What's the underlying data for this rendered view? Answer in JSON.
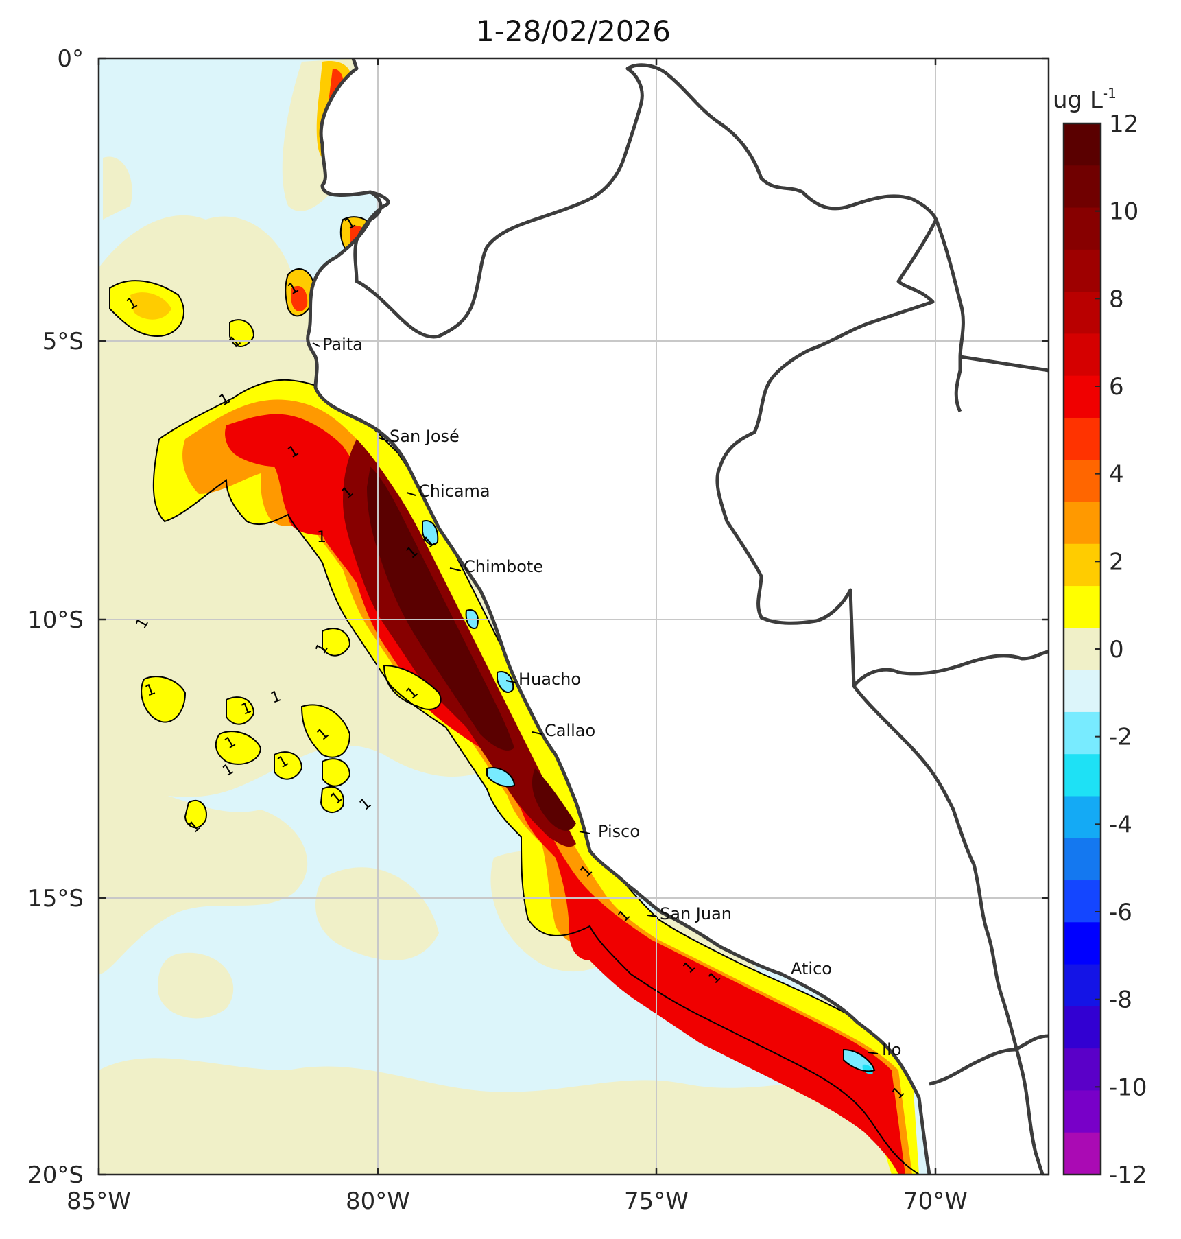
{
  "title": "1-28/02/2026",
  "colorbar": {
    "unit_main": "ug L",
    "unit_exp": "-1",
    "tick_labels": [
      "12",
      "10",
      "8",
      "6",
      "4",
      "2",
      "0",
      "-2",
      "-4",
      "-6",
      "-8",
      "-10",
      "-12"
    ],
    "colors": [
      "#5a0000",
      "#700000",
      "#870000",
      "#9e0000",
      "#b90000",
      "#d50000",
      "#f00000",
      "#ff3300",
      "#ff6600",
      "#ff9900",
      "#ffcc00",
      "#ffff00",
      "#f0f0c8",
      "#dcf5fa",
      "#78ebff",
      "#1ee1f5",
      "#14aaf5",
      "#1478f0",
      "#1446ff",
      "#0000ff",
      "#1414e6",
      "#3200d2",
      "#5a00c8",
      "#7800c8",
      "#aa0ab4"
    ]
  },
  "axes": {
    "x_ticks": [
      "85°W",
      "80°W",
      "75°W",
      "70°W"
    ],
    "y_ticks": [
      "0°",
      "5°S",
      "10°S",
      "15°S",
      "20°S"
    ]
  },
  "places": [
    "Paita",
    "San José",
    "Chicama",
    "Chimbote",
    "Huacho",
    "Callao",
    "Pisco",
    "San Juan",
    "Atico",
    "Ilo"
  ],
  "contour_label": "1",
  "colors": {
    "ocean_background": "#dcf5fa",
    "near_zero": "#f0f0c8",
    "land": "#ffffff",
    "border": "#3c3c3c",
    "grid": "#c8c8c8"
  }
}
